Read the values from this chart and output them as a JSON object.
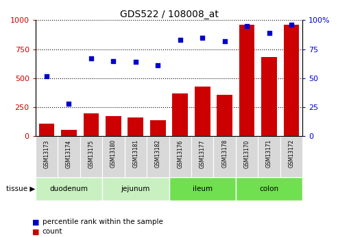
{
  "title": "GDS522 / 108008_at",
  "samples": [
    "GSM13173",
    "GSM13174",
    "GSM13175",
    "GSM13180",
    "GSM13181",
    "GSM13182",
    "GSM13176",
    "GSM13177",
    "GSM13178",
    "GSM13170",
    "GSM13171",
    "GSM13172"
  ],
  "counts": [
    110,
    55,
    195,
    175,
    160,
    140,
    370,
    430,
    355,
    960,
    685,
    960
  ],
  "percentiles": [
    52,
    28,
    67,
    65,
    64,
    61,
    83,
    85,
    82,
    95,
    89,
    96
  ],
  "tissues": [
    {
      "label": "duodenum",
      "start": 0,
      "end": 3,
      "color": "#c8f0c0"
    },
    {
      "label": "jejunum",
      "start": 3,
      "end": 6,
      "color": "#c8f0c0"
    },
    {
      "label": "ileum",
      "start": 6,
      "end": 9,
      "color": "#70e050"
    },
    {
      "label": "colon",
      "start": 9,
      "end": 12,
      "color": "#70e050"
    }
  ],
  "ylim_left": [
    0,
    1000
  ],
  "ylim_right": [
    0,
    100
  ],
  "bar_color": "#cc0000",
  "dot_color": "#0000cc",
  "tick_color_left": "#cc0000",
  "tick_color_right": "#0000cc",
  "bg_color": "#ffffff",
  "sample_cell_color": "#d8d8d8",
  "legend_count_label": "count",
  "legend_pct_label": "percentile rank within the sample"
}
